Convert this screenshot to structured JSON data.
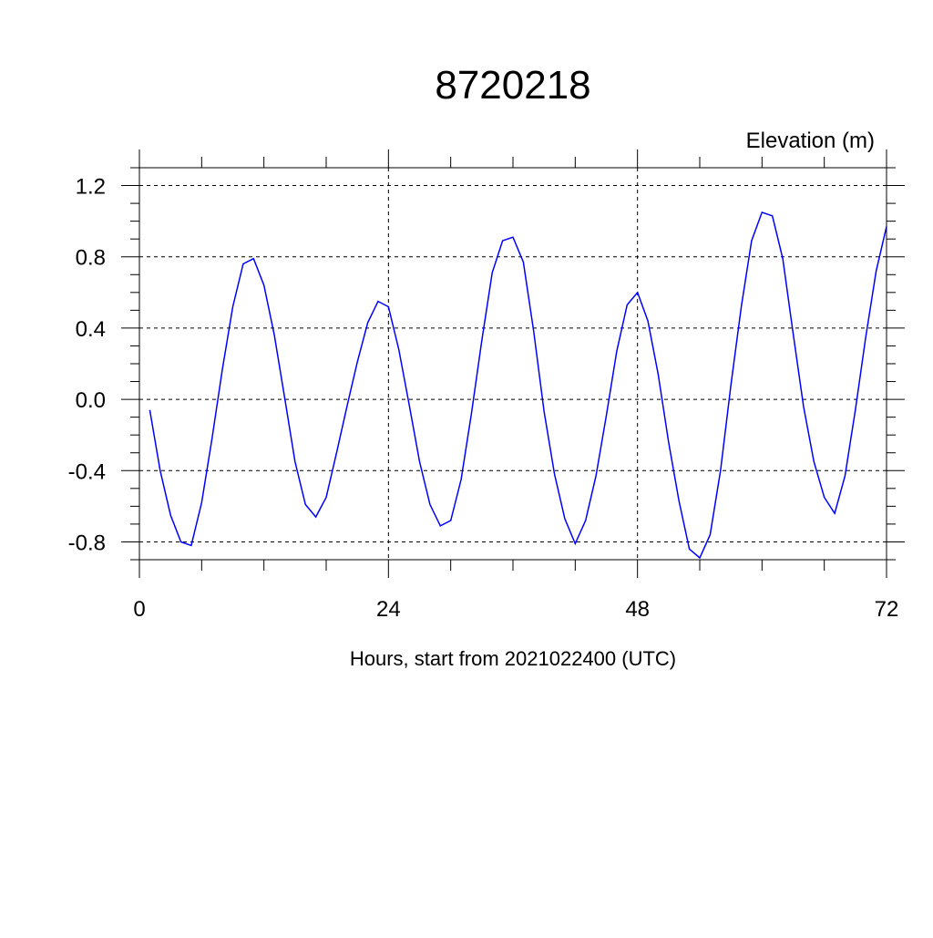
{
  "chart_data": {
    "type": "line",
    "title": "8720218",
    "ylabel": "Elevation (m)",
    "xlabel": "Hours, start from 2021022400 (UTC)",
    "xlim": [
      0,
      72
    ],
    "ylim": [
      -0.9,
      1.3
    ],
    "x_ticks": [
      0,
      24,
      48,
      72
    ],
    "x_tick_labels": [
      "0",
      "24",
      "48",
      "72"
    ],
    "y_ticks": [
      -0.8,
      -0.4,
      0.0,
      0.4,
      0.8,
      1.2
    ],
    "y_tick_labels": [
      "-0.8",
      "-0.4",
      "0.0",
      "0.4",
      "0.8",
      "1.2"
    ],
    "grid": true,
    "series": [
      {
        "color": "#0000ff",
        "x": [
          1,
          2,
          3,
          4,
          5,
          6,
          7,
          8,
          9,
          10,
          11,
          12,
          13,
          14,
          15,
          16,
          17,
          18,
          19,
          20,
          21,
          22,
          23,
          24,
          25,
          26,
          27,
          28,
          29,
          30,
          31,
          32,
          33,
          34,
          35,
          36,
          37,
          38,
          39,
          40,
          41,
          42,
          43,
          44,
          45,
          46,
          47,
          48,
          49,
          50,
          51,
          52,
          53,
          54,
          55,
          56,
          57,
          58,
          59,
          60,
          61,
          62,
          63,
          64,
          65,
          66,
          67,
          68,
          69,
          70,
          71,
          72
        ],
        "values": [
          -0.06,
          -0.4,
          -0.65,
          -0.8,
          -0.82,
          -0.58,
          -0.22,
          0.17,
          0.52,
          0.76,
          0.79,
          0.64,
          0.36,
          0.01,
          -0.35,
          -0.59,
          -0.66,
          -0.55,
          -0.3,
          -0.04,
          0.21,
          0.43,
          0.55,
          0.52,
          0.28,
          -0.03,
          -0.35,
          -0.59,
          -0.71,
          -0.68,
          -0.45,
          -0.08,
          0.33,
          0.71,
          0.89,
          0.91,
          0.77,
          0.38,
          -0.07,
          -0.42,
          -0.67,
          -0.81,
          -0.68,
          -0.43,
          -0.09,
          0.27,
          0.53,
          0.6,
          0.44,
          0.14,
          -0.24,
          -0.57,
          -0.84,
          -0.89,
          -0.76,
          -0.4,
          0.08,
          0.52,
          0.89,
          1.05,
          1.03,
          0.79,
          0.37,
          -0.04,
          -0.35,
          -0.55,
          -0.64,
          -0.43,
          -0.06,
          0.35,
          0.72,
          0.97
        ]
      }
    ]
  }
}
